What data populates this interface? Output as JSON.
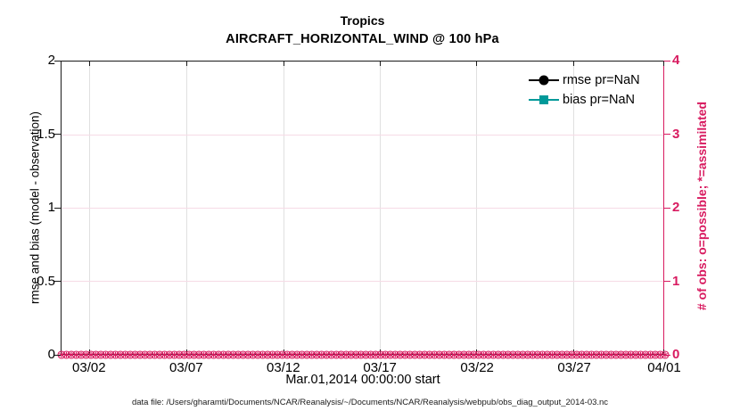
{
  "chart_data": {
    "type": "line",
    "title": "Tropics",
    "subtitle": "AIRCRAFT_HORIZONTAL_WIND @ 100 hPa",
    "xlabel": "Mar.01,2014 00:00:00 start",
    "left_axis": {
      "label": "rmse and bias (model - observation)",
      "ticks": [
        "0",
        "0.5",
        "1",
        "1.5",
        "2"
      ],
      "lim": [
        0,
        2
      ],
      "color": "#000000"
    },
    "right_axis": {
      "label": "# of obs: o=possible; *=assimilated",
      "ticks": [
        "0",
        "1",
        "2",
        "3",
        "4"
      ],
      "lim": [
        0,
        4
      ],
      "color": "#d81b60"
    },
    "x_axis": {
      "ticks": [
        "03/02",
        "03/07",
        "03/12",
        "03/17",
        "03/22",
        "03/27",
        "04/01"
      ]
    },
    "legend": [
      {
        "label": "rmse pr=NaN",
        "color": "#000000",
        "marker": "circle"
      },
      {
        "label": "bias pr=NaN",
        "color": "#009999",
        "marker": "square"
      }
    ],
    "series": [
      {
        "name": "rmse",
        "values": "NaN"
      },
      {
        "name": "bias",
        "values": "NaN"
      }
    ],
    "obs_markers": {
      "count": 124,
      "possible": 0,
      "assimilated": 0,
      "color": "#d81b60"
    },
    "grid": {
      "vertical_color": "#e0e0e0",
      "horizontal_color": "#f6dbe6"
    }
  },
  "footer": {
    "text": "data file: /Users/gharamti/Documents/NCAR/Reanalysis/~/Documents/NCAR/Reanalysis/webpub/obs_diag_output_2014-03.nc"
  }
}
